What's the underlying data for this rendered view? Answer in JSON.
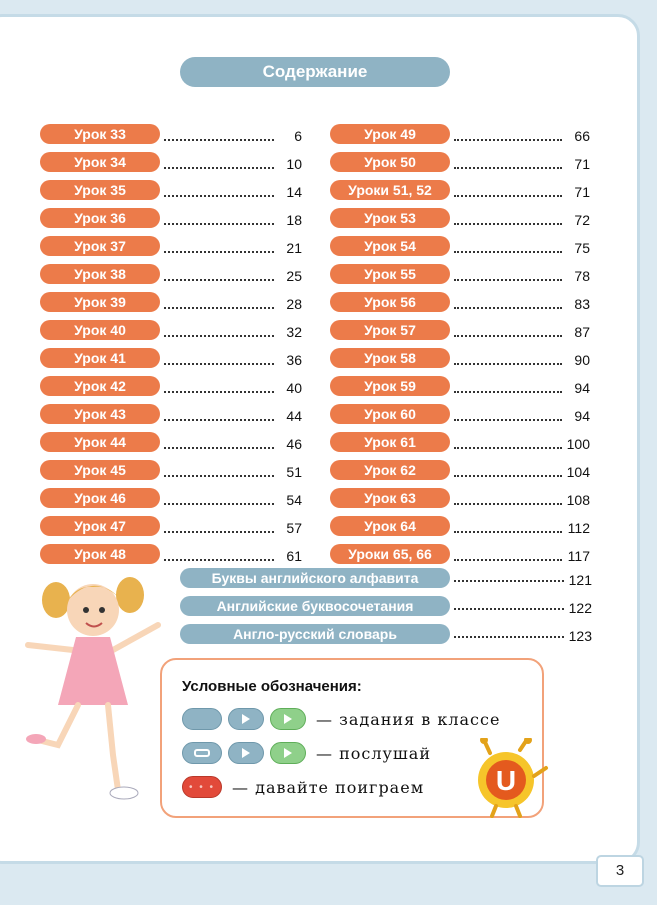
{
  "title": "Содержание",
  "toc_left": [
    {
      "label": "Урок 33",
      "page": "6"
    },
    {
      "label": "Урок 34",
      "page": "10"
    },
    {
      "label": "Урок 35",
      "page": "14"
    },
    {
      "label": "Урок 36",
      "page": "18"
    },
    {
      "label": "Урок 37",
      "page": "21"
    },
    {
      "label": "Урок 38",
      "page": "25"
    },
    {
      "label": "Урок 39",
      "page": "28"
    },
    {
      "label": "Урок 40",
      "page": "32"
    },
    {
      "label": "Урок 41",
      "page": "36"
    },
    {
      "label": "Урок 42",
      "page": "40"
    },
    {
      "label": "Урок 43",
      "page": "44"
    },
    {
      "label": "Урок 44",
      "page": "46"
    },
    {
      "label": "Урок 45",
      "page": "51"
    },
    {
      "label": "Урок 46",
      "page": "54"
    },
    {
      "label": "Урок 47",
      "page": "57"
    },
    {
      "label": "Урок 48",
      "page": "61"
    }
  ],
  "toc_right": [
    {
      "label": "Урок 49",
      "page": "66"
    },
    {
      "label": "Урок 50",
      "page": "71"
    },
    {
      "label": "Уроки 51, 52",
      "page": "71"
    },
    {
      "label": "Урок 53",
      "page": "72"
    },
    {
      "label": "Урок 54",
      "page": "75"
    },
    {
      "label": "Урок 55",
      "page": "78"
    },
    {
      "label": "Урок 56",
      "page": "83"
    },
    {
      "label": "Урок 57",
      "page": "87"
    },
    {
      "label": "Урок 58",
      "page": "90"
    },
    {
      "label": "Урок 59",
      "page": "94"
    },
    {
      "label": "Урок 60",
      "page": "94"
    },
    {
      "label": "Урок 61",
      "page": "100"
    },
    {
      "label": "Урок 62",
      "page": "104"
    },
    {
      "label": "Урок 63",
      "page": "108"
    },
    {
      "label": "Урок 64",
      "page": "112"
    },
    {
      "label": "Уроки 65, 66",
      "page": "117"
    }
  ],
  "appendix": [
    {
      "label": "Буквы английского алфавита",
      "page": "121"
    },
    {
      "label": "Английские буквосочетания",
      "page": "122"
    },
    {
      "label": "Англо-русский словарь",
      "page": "123"
    }
  ],
  "legend": {
    "title": "Условные обозначения:",
    "class_tasks": "— задания в классе",
    "listen": "— послушай",
    "play": "— давайте поиграем"
  },
  "mascot_letter": "U",
  "page_number": "3",
  "colors": {
    "lesson_pill": "#ec7b4a",
    "section_pill": "#8fb3c4",
    "legend_border": "#f2a27a"
  }
}
